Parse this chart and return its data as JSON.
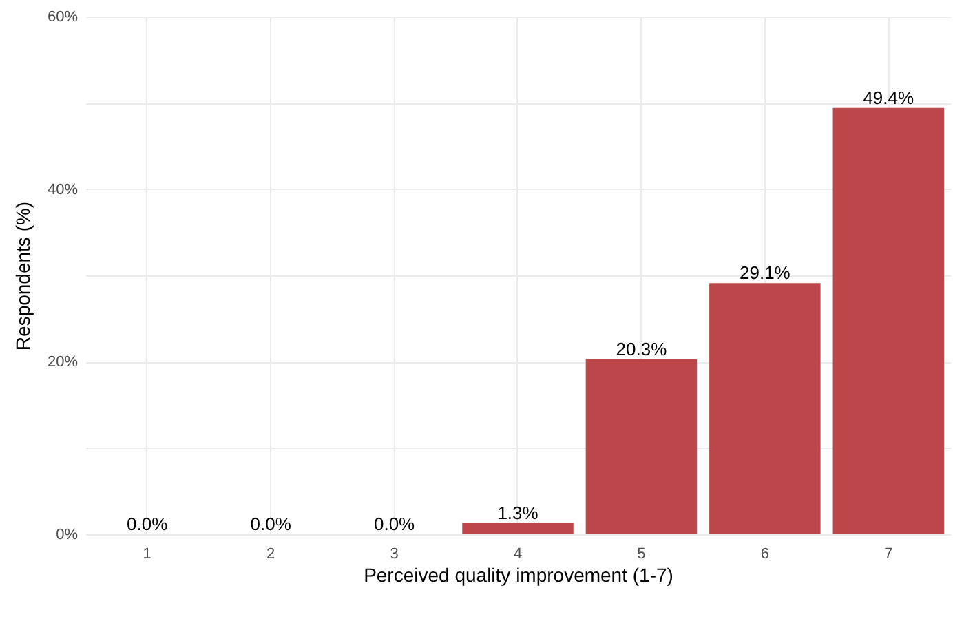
{
  "chart_data": {
    "type": "bar",
    "xlabel": "Perceived quality improvement (1-7)",
    "ylabel": "Respondents (%)",
    "categories": [
      "1",
      "2",
      "3",
      "4",
      "5",
      "6",
      "7"
    ],
    "values": [
      0,
      0,
      0,
      1.3,
      20.3,
      29.1,
      49.4
    ],
    "value_labels": [
      "0.0%",
      "0.0%",
      "0.0%",
      "1.3%",
      "20.3%",
      "29.1%",
      "49.4%"
    ],
    "color": "#bc474a",
    "ylim": [
      0,
      60
    ],
    "yticks": [
      {
        "value": 0,
        "label": "0%"
      },
      {
        "value": 10,
        "label": null
      },
      {
        "value": 20,
        "label": "20%"
      },
      {
        "value": 30,
        "label": null
      },
      {
        "value": 40,
        "label": "40%"
      },
      {
        "value": 50,
        "label": null
      },
      {
        "value": 60,
        "label": "60%"
      }
    ],
    "grid": true
  }
}
